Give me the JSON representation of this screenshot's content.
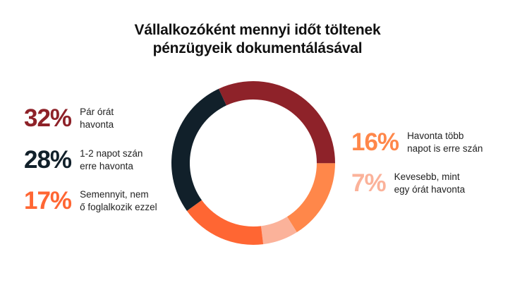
{
  "chart_data": {
    "type": "pie",
    "style": "donut",
    "title_lines": [
      "Vállalkozóként mennyi időt töltenek",
      "pénzügyeik dokumentálásával"
    ],
    "slices": [
      {
        "label": "Pár órát\nhavonta",
        "value": 32,
        "pct_label": "32%",
        "color": "#8E2229"
      },
      {
        "label": "Havonta több\nnapot is erre szán",
        "value": 16,
        "pct_label": "16%",
        "color": "#FF874A"
      },
      {
        "label": "Kevesebb, mint\negy órát havonta",
        "value": 7,
        "pct_label": "7%",
        "color": "#FBB29A"
      },
      {
        "label": "Semennyit, nem\nő foglalkozik ezzel",
        "value": 17,
        "pct_label": "17%",
        "color": "#FF6633"
      },
      {
        "label": "1-2 napot szán\nerre havonta",
        "value": 28,
        "pct_label": "28%",
        "color": "#11202A"
      }
    ],
    "start_angle_deg": -115,
    "direction": "clockwise"
  }
}
